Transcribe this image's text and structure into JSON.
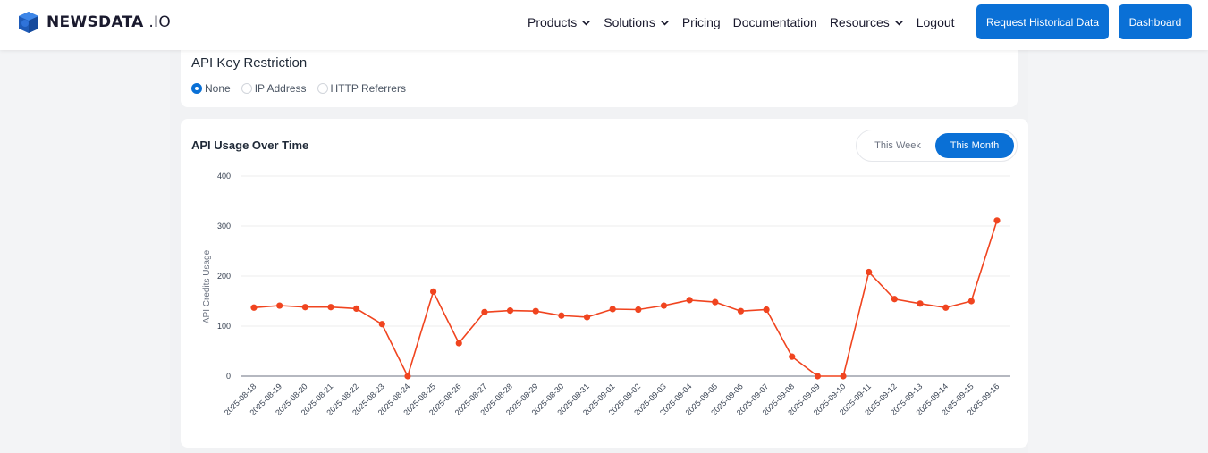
{
  "navbar": {
    "brand_main": "NEWSDATA",
    "brand_suffix": " .IO",
    "links": [
      {
        "label": "Products",
        "dropdown": true
      },
      {
        "label": "Solutions",
        "dropdown": true
      },
      {
        "label": "Pricing",
        "dropdown": false
      },
      {
        "label": "Documentation",
        "dropdown": false
      },
      {
        "label": "Resources",
        "dropdown": true
      },
      {
        "label": "Logout",
        "dropdown": false
      }
    ],
    "request_button": "Request Historical Data",
    "dashboard_button": "Dashboard"
  },
  "restriction": {
    "title": "API Key Restriction",
    "options": [
      {
        "label": "None",
        "checked": true
      },
      {
        "label": "IP Address",
        "checked": false
      },
      {
        "label": "HTTP Referrers",
        "checked": false
      }
    ]
  },
  "usage": {
    "title": "API Usage Over Time",
    "toggle_week": "This Week",
    "toggle_month": "This Month",
    "active": "This Month"
  },
  "colors": {
    "primary": "#0a70d6",
    "line": "#f0441f"
  },
  "chart_data": {
    "type": "line",
    "ylabel": "API Credits Usage",
    "ylim": [
      0,
      400
    ],
    "yticks": [
      0,
      100,
      200,
      300,
      400
    ],
    "grid": true,
    "categories": [
      "2025-08-18",
      "2025-08-19",
      "2025-08-20",
      "2025-08-21",
      "2025-08-22",
      "2025-08-23",
      "2025-08-24",
      "2025-08-25",
      "2025-08-26",
      "2025-08-27",
      "2025-08-28",
      "2025-08-29",
      "2025-08-30",
      "2025-08-31",
      "2025-09-01",
      "2025-09-02",
      "2025-09-03",
      "2025-09-04",
      "2025-09-05",
      "2025-09-06",
      "2025-09-07",
      "2025-09-08",
      "2025-09-09",
      "2025-09-10",
      "2025-09-11",
      "2025-09-12",
      "2025-09-13",
      "2025-09-14",
      "2025-09-15",
      "2025-09-16"
    ],
    "values": [
      137,
      141,
      138,
      138,
      135,
      104,
      0,
      169,
      66,
      128,
      131,
      130,
      121,
      118,
      134,
      133,
      141,
      152,
      148,
      130,
      133,
      39,
      0,
      0,
      208,
      154,
      145,
      137,
      150,
      311
    ]
  }
}
